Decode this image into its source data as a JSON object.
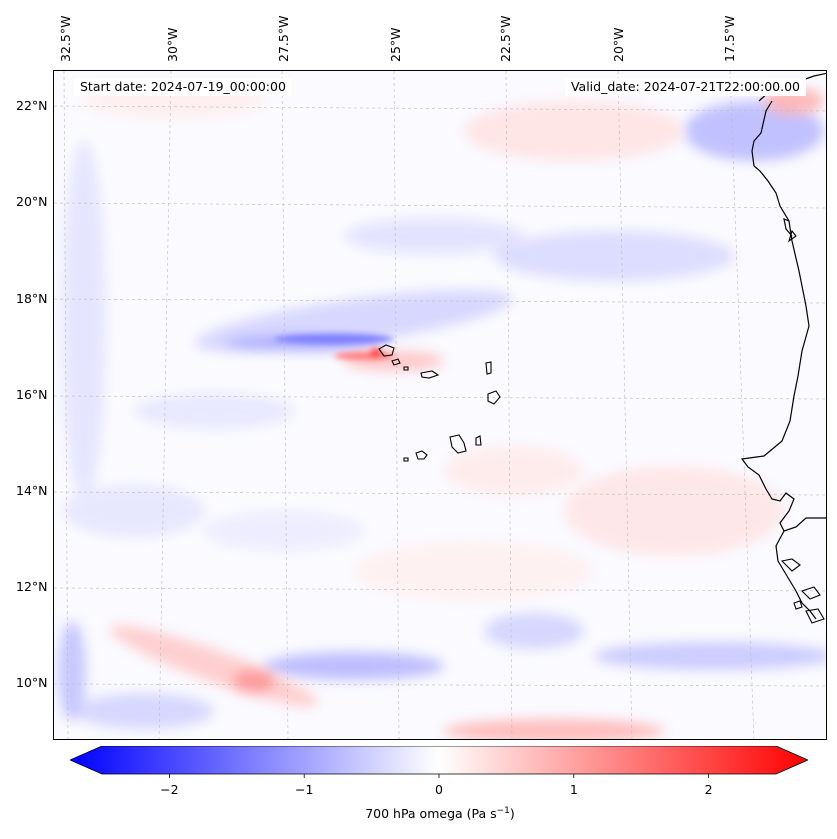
{
  "map": {
    "start_date_label": "Start date: 2024-07-19_00:00:00",
    "valid_date_label": "Valid_date: 2024-07-21T22:00:00.00",
    "lon_labels": [
      "32.5°W",
      "30°W",
      "27.5°W",
      "25°W",
      "22.5°W",
      "20°W",
      "17.5°W"
    ],
    "lat_labels": [
      "22°N",
      "20°N",
      "18°N",
      "16°N",
      "14°N",
      "12°N",
      "10°N"
    ],
    "extent": {
      "lon_min": -33.0,
      "lon_max": -16.1,
      "lat_min": 8.9,
      "lat_max": 22.8
    },
    "field": "700 hPa omega",
    "colormap": "bwr"
  },
  "colorbar": {
    "ticks": [
      "−2",
      "−1",
      "0",
      "1",
      "2"
    ],
    "tick_values": [
      -2,
      -1,
      0,
      1,
      2
    ],
    "range": [
      -2.5,
      2.5
    ],
    "label": "700 hPa omega (Pa s",
    "label_sup": "−1",
    "label_close": ")",
    "colors": {
      "min": "#0000ff",
      "mid": "#ffffff",
      "max": "#ff0000"
    }
  }
}
